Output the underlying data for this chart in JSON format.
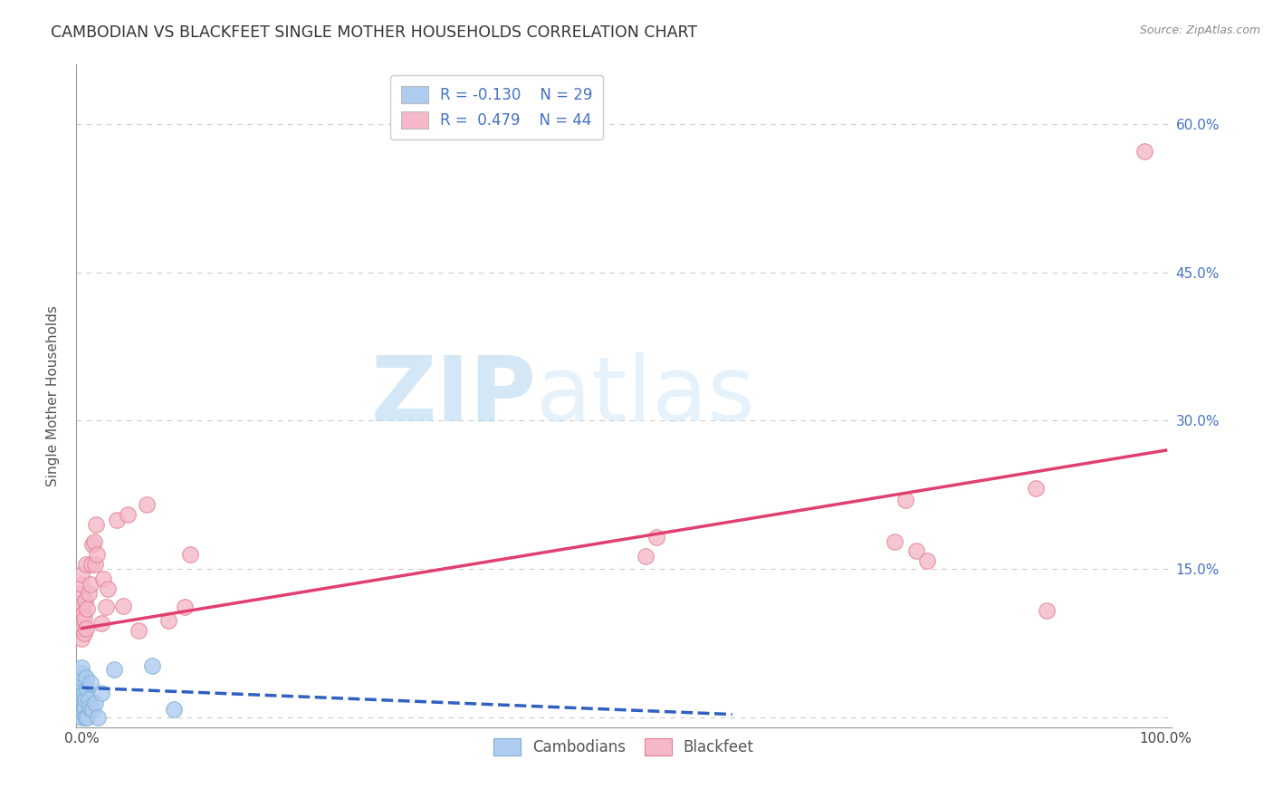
{
  "title": "CAMBODIAN VS BLACKFEET SINGLE MOTHER HOUSEHOLDS CORRELATION CHART",
  "source": "Source: ZipAtlas.com",
  "ylabel": "Single Mother Households",
  "watermark_zip": "ZIP",
  "watermark_atlas": "atlas",
  "xlim": [
    -0.005,
    1.005
  ],
  "ylim": [
    -0.01,
    0.66
  ],
  "yticks": [
    0.0,
    0.15,
    0.3,
    0.45,
    0.6
  ],
  "ytick_labels": [
    "",
    "15.0%",
    "30.0%",
    "45.0%",
    "60.0%"
  ],
  "xticks": [
    0.0,
    0.25,
    0.5,
    0.75,
    1.0
  ],
  "xtick_labels": [
    "0.0%",
    "",
    "",
    "",
    "100.0%"
  ],
  "legend_entries": [
    {
      "label": "Cambodians",
      "color": "#aecbf0",
      "edge": "#7bafd4",
      "R": -0.13,
      "N": 29
    },
    {
      "label": "Blackfeet",
      "color": "#f5b8c8",
      "edge": "#e08090",
      "R": 0.479,
      "N": 44
    }
  ],
  "cambodian_points": [
    [
      0.0,
      0.0
    ],
    [
      0.0,
      0.008
    ],
    [
      0.0,
      0.015
    ],
    [
      0.0,
      0.02
    ],
    [
      0.0,
      0.025
    ],
    [
      0.0,
      0.03
    ],
    [
      0.0,
      0.035
    ],
    [
      0.0,
      0.04
    ],
    [
      0.0,
      0.045
    ],
    [
      0.0,
      0.05
    ],
    [
      0.001,
      0.005
    ],
    [
      0.001,
      0.015
    ],
    [
      0.002,
      0.01
    ],
    [
      0.002,
      0.025
    ],
    [
      0.003,
      0.0
    ],
    [
      0.003,
      0.018
    ],
    [
      0.004,
      0.04
    ],
    [
      0.005,
      0.0
    ],
    [
      0.005,
      0.028
    ],
    [
      0.006,
      0.018
    ],
    [
      0.007,
      0.01
    ],
    [
      0.008,
      0.035
    ],
    [
      0.01,
      0.008
    ],
    [
      0.012,
      0.015
    ],
    [
      0.015,
      0.0
    ],
    [
      0.018,
      0.025
    ],
    [
      0.03,
      0.048
    ],
    [
      0.065,
      0.052
    ],
    [
      0.085,
      0.008
    ]
  ],
  "blackfeet_points": [
    [
      0.0,
      0.08
    ],
    [
      0.0,
      0.09
    ],
    [
      0.0,
      0.1
    ],
    [
      0.0,
      0.108
    ],
    [
      0.0,
      0.115
    ],
    [
      0.0,
      0.125
    ],
    [
      0.0,
      0.135
    ],
    [
      0.0,
      0.145
    ],
    [
      0.001,
      0.105
    ],
    [
      0.002,
      0.085
    ],
    [
      0.002,
      0.1
    ],
    [
      0.003,
      0.118
    ],
    [
      0.004,
      0.09
    ],
    [
      0.004,
      0.155
    ],
    [
      0.005,
      0.11
    ],
    [
      0.006,
      0.125
    ],
    [
      0.008,
      0.135
    ],
    [
      0.009,
      0.155
    ],
    [
      0.01,
      0.175
    ],
    [
      0.011,
      0.178
    ],
    [
      0.012,
      0.155
    ],
    [
      0.013,
      0.195
    ],
    [
      0.014,
      0.165
    ],
    [
      0.018,
      0.095
    ],
    [
      0.02,
      0.14
    ],
    [
      0.022,
      0.112
    ],
    [
      0.024,
      0.13
    ],
    [
      0.032,
      0.2
    ],
    [
      0.038,
      0.113
    ],
    [
      0.042,
      0.205
    ],
    [
      0.052,
      0.088
    ],
    [
      0.06,
      0.215
    ],
    [
      0.08,
      0.098
    ],
    [
      0.095,
      0.112
    ],
    [
      0.1,
      0.165
    ],
    [
      0.52,
      0.163
    ],
    [
      0.53,
      0.182
    ],
    [
      0.75,
      0.178
    ],
    [
      0.76,
      0.22
    ],
    [
      0.77,
      0.168
    ],
    [
      0.78,
      0.158
    ],
    [
      0.88,
      0.232
    ],
    [
      0.89,
      0.108
    ],
    [
      0.98,
      0.572
    ]
  ],
  "cambodian_line": {
    "x0": 0.0,
    "y0": 0.03,
    "x1": 0.6,
    "y1": 0.003,
    "color": "#3060c0",
    "linestyle": "--"
  },
  "blackfeet_line": {
    "x0": 0.0,
    "y0": 0.09,
    "x1": 1.0,
    "y1": 0.27,
    "color": "#e04070",
    "linestyle": "-"
  },
  "background_color": "#ffffff",
  "grid_color": "#cccccc",
  "title_fontsize": 12.5,
  "right_tick_color": "#4472c4",
  "left_spine_color": "#999999",
  "bottom_spine_color": "#999999"
}
